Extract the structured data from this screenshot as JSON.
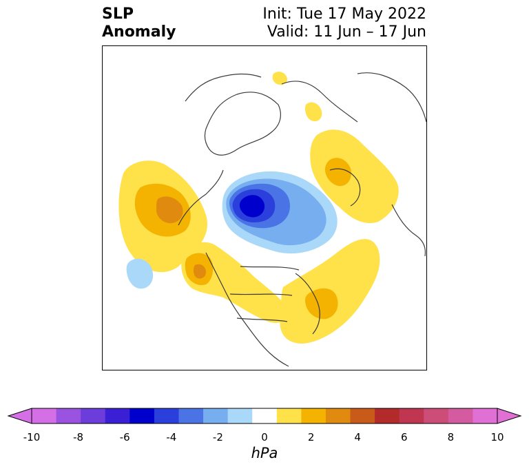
{
  "header": {
    "title_line1": "SLP",
    "title_line2": "Anomaly",
    "init": "Init: Tue 17 May 2022",
    "valid": "Valid: 11 Jun – 17 Jun"
  },
  "colorbar": {
    "unit": "hPa",
    "ticks": [
      "-10",
      "-8",
      "-6",
      "-4",
      "-2",
      "0",
      "2",
      "4",
      "6",
      "8",
      "10"
    ],
    "levels": [
      -10,
      -9,
      -8,
      -7,
      -6,
      -5,
      -4,
      -3,
      -2,
      -1,
      1,
      2,
      3,
      4,
      5,
      6,
      7,
      8,
      9,
      10
    ],
    "colors": [
      "#d46fe6",
      "#9a52e0",
      "#6c3ddb",
      "#3a1fd4",
      "#0000cc",
      "#2b3fdc",
      "#4a74e6",
      "#76aef0",
      "#aad8f8",
      "#ffffff",
      "#ffe14a",
      "#f3b300",
      "#e08a10",
      "#c85a1a",
      "#b22a2a",
      "#c0354f",
      "#cc4d78",
      "#d45ba0",
      "#e070d4"
    ],
    "extend": "both"
  },
  "map": {
    "projection": "north-polar-stereographic",
    "anomaly_features": [
      {
        "name": "negative-center-arctic",
        "min_hpa": -6
      },
      {
        "name": "positive-pacific",
        "max_hpa": 4
      },
      {
        "name": "positive-western-north-america",
        "max_hpa": 4
      },
      {
        "name": "positive-eastern-north-america-atlantic",
        "max_hpa": 3
      },
      {
        "name": "positive-eurasia",
        "max_hpa": 3
      },
      {
        "name": "negative-pacific-small",
        "min_hpa": -2
      }
    ]
  }
}
